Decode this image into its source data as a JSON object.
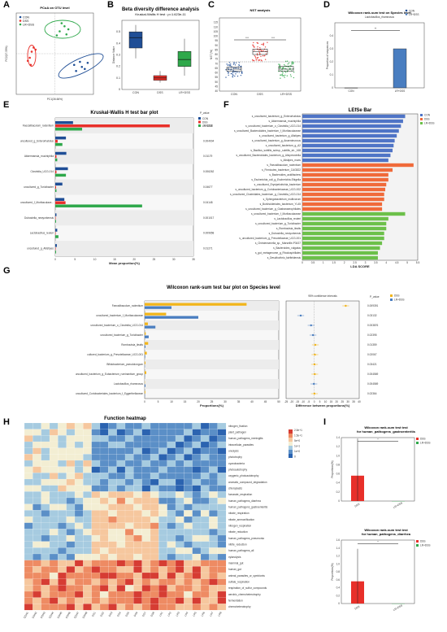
{
  "colors": {
    "CON": "#1f4e96",
    "DSS": "#e8302a",
    "LR_DSS": "#2ea84a",
    "gold": "#f2b51a",
    "blue2": "#4a7ec0",
    "lefse_blue": "#4f74c6",
    "lefse_orange": "#f06a3a",
    "lefse_green": "#6cc04a"
  },
  "groups": [
    "CON",
    "DSS",
    "LR+DSS"
  ],
  "panel_letters": [
    "A",
    "B",
    "C",
    "D",
    "E",
    "F",
    "G",
    "H",
    "I"
  ],
  "chart_data": [
    {
      "id": "A",
      "type": "scatter",
      "title": "PCoA on OTU level",
      "xlabel": "PC1(36.66%)",
      "ylabel": "PC2(17.33%)",
      "series": [
        {
          "name": "CON",
          "points": [
            [
              0.22,
              -0.17
            ],
            [
              0.28,
              -0.13
            ],
            [
              0.34,
              -0.09
            ],
            [
              0.26,
              -0.08
            ],
            [
              0.31,
              -0.15
            ],
            [
              0.2,
              -0.11
            ]
          ]
        },
        {
          "name": "DSS",
          "points": [
            [
              -0.26,
              -0.04
            ],
            [
              -0.24,
              0.02
            ],
            [
              -0.28,
              -0.07
            ],
            [
              -0.22,
              0.06
            ],
            [
              -0.25,
              -0.11
            ],
            [
              -0.2,
              0.04
            ]
          ]
        },
        {
          "name": "LR+DSS",
          "points": [
            [
              0.05,
              0.22
            ],
            [
              0.1,
              0.27
            ],
            [
              0.02,
              0.18
            ],
            [
              0.12,
              0.19
            ],
            [
              0.07,
              0.3
            ],
            [
              0.14,
              0.24
            ]
          ]
        }
      ]
    },
    {
      "id": "B",
      "type": "box",
      "title": "Beta diversity difference analysis",
      "subtitle": "Kruskal-Wallis H test : p=1.623e-11",
      "ylabel": "Distance Value",
      "categories": [
        "CON",
        "DSS",
        "LR+DSS"
      ],
      "boxes": [
        [
          0.27,
          0.36,
          0.45,
          0.5,
          0.56
        ],
        [
          0.06,
          0.08,
          0.1,
          0.12,
          0.16
        ],
        [
          0.12,
          0.2,
          0.26,
          0.33,
          0.44
        ]
      ]
    },
    {
      "id": "C",
      "type": "box",
      "title": "NST analysis",
      "ylabel": "NST (%)",
      "categories": [
        "CON",
        "DSS",
        "LR+DSS"
      ],
      "yticks": [
        "40",
        "45",
        "50",
        "55",
        "60",
        "65",
        "70",
        "75",
        "80",
        "85",
        "90",
        "95",
        "100",
        "105",
        "110",
        "115"
      ],
      "boxes": [
        [
          58,
          62,
          64,
          66,
          69
        ],
        [
          76,
          80,
          83,
          86,
          91
        ],
        [
          57,
          62,
          64,
          67,
          70
        ]
      ],
      "sig": [
        "***",
        "***"
      ]
    },
    {
      "id": "D",
      "type": "bar",
      "title": "Wilcoxon rank-sum test on Species level",
      "subtitle": "Lactobacillus_rhamnosus",
      "ylabel": "Proportion of sequences",
      "categories": [
        "CON",
        "LR+DSS"
      ],
      "values": [
        0.0,
        0.3
      ],
      "sig": "**"
    },
    {
      "id": "E",
      "type": "bar",
      "title": "Kruskal-Wallis H test bar plot",
      "xlabel": "Mean proportion(%)",
      "pvalue_label": "P_value",
      "categories": [
        "Faecalibaculum_rodentium",
        "uncultured_g_Enterorhabdus",
        "Akkermansia_muciniphila",
        "Clostridia_UCG-014",
        "uncultured_g_Turicibacter",
        "uncultured_f_Muribaculace...",
        "Dubosiella_newyorkensis",
        "Lactobacillus_reuteri",
        "uncultured_g_Allistipes"
      ],
      "series": [
        {
          "name": "CON",
          "values": [
            4.5,
            2.7,
            2.8,
            3.2,
            1.8,
            2.3,
            0.3,
            0.5,
            0.4
          ]
        },
        {
          "name": "DSS",
          "values": [
            29.0,
            0.6,
            0.3,
            0.3,
            0.2,
            2.6,
            0.1,
            0.1,
            0.1
          ]
        },
        {
          "name": "LR+DSS",
          "values": [
            6.8,
            1.8,
            0.5,
            2.7,
            0.3,
            22.0,
            0.2,
            0.8,
            0.2
          ]
        }
      ],
      "pvalues": [
        "0.01218",
        "0.004004",
        "0.01179",
        "0.006262",
        "0.04677",
        "0.04148",
        "0.001017",
        "0.009658",
        "0.01271"
      ],
      "xlim": [
        0,
        35
      ]
    },
    {
      "id": "F",
      "type": "bar",
      "title": "LEfSe Bar",
      "xlabel": "LDA SCORE",
      "categories": [
        "s_uncultured_bacterium_g_Enterorhabdus",
        "s_Akkermansia_muciniphila",
        "s_uncultured_bacterium_o_Clostridia_UCG-014",
        "s_uncultured_Bacteroidales_bacterium_f_Muribaculaceae",
        "s_uncultured_bacterium_g_Alistipes",
        "s_uncultured_bacterium_g_Anaerotruncus",
        "s_uncultured_bacterium_g_A2",
        "s_Bacillus_subtilis_subsp._subtilis_str._168",
        "s_uncultured_Bacteroidales_bacterium_g_Alloprevotella",
        "s_Alistipes_muris",
        "s_Faecalibaculum_rodentium",
        "s_Firmicutes_bacterium_CAG822",
        "s_Bacteroides_acidifaciens",
        "s_Escherichia_coli_g_Escherichia-Shigella",
        "s_uncultured_Erysipelotrichia_bacterium",
        "s_uncultured_bacterium_g_Coriobacteriaceae_UCG-002",
        "s_uncultured_Clostridiales_bacterium_g_Clostridia_UCG-014",
        "s_Sphingobacterium_multivorum",
        "s_Burkholderiales_bacterium_YL45",
        "s_uncultured_bacterium_g_Gastranaerophilales",
        "s_uncultured_bacterium_f_Muribaculaceae",
        "s_Lactobacillus_reuteri",
        "s_uncultured_bacterium_g_Turicibacter",
        "s_Romboutsia_ilealis",
        "s_Dubosiella_newyorkensis",
        "s_uncultured_bacterium_g_Prevotellaceae_UCG-001",
        "s_Christensenella_sp._Marseille-P3437",
        "s_Bacteroides_vulgatus",
        "s_gut_metagenome_g_Rhodospirillales",
        "s_Desulfovibrio_fairfieldensis"
      ],
      "values": [
        4.9,
        4.8,
        4.7,
        4.6,
        4.5,
        4.4,
        4.35,
        4.3,
        4.2,
        4.1,
        5.3,
        4.3,
        4.1,
        4.1,
        4.0,
        3.95,
        3.9,
        3.9,
        3.8,
        3.8,
        4.9,
        4.1,
        4.0,
        4.0,
        3.9,
        3.9,
        3.8,
        3.7,
        3.6,
        3.6
      ],
      "groups_of": [
        "CON",
        "CON",
        "CON",
        "CON",
        "CON",
        "CON",
        "CON",
        "CON",
        "CON",
        "CON",
        "DSS",
        "DSS",
        "DSS",
        "DSS",
        "DSS",
        "DSS",
        "DSS",
        "DSS",
        "DSS",
        "DSS",
        "LR+DSS",
        "LR+DSS",
        "LR+DSS",
        "LR+DSS",
        "LR+DSS",
        "LR+DSS",
        "LR+DSS",
        "LR+DSS",
        "LR+DSS",
        "LR+DSS"
      ],
      "xticks": [
        "0",
        "0.5",
        "1",
        "1.5",
        "2",
        "2.5",
        "3",
        "3.5",
        "4",
        "4.5",
        "5",
        "5.5"
      ]
    },
    {
      "id": "G",
      "type": "bar",
      "title": "Wilcoxon rank-sum test bar plot on Species level",
      "xlabel": "Proportions(%)",
      "xlabel2": "Difference between proportions(%)",
      "ci_label": "95% confidence intervals",
      "pvalue_label": "P_value",
      "categories": [
        "Faecalibaculum_rodentium",
        "uncultured_bacterium_f_Muribaculaceae",
        "uncultured_bacterium_o_Clostridia_UCG-014",
        "uncultured_bacterium_g_Turicibacter",
        "Romboutsia_ilealis",
        "cultured_bacterium_g_Prevotellaceae_UCG-001",
        "Bifidobacterium_pseudolongum",
        "uncultured_bacterium_g_Eubacterium_ruminantium_group",
        "Lactobacillus_rhamnosus",
        "uncultured_Coriobacteriales_bacterium_f_Eggerthellaceae"
      ],
      "series": [
        {
          "name": "DSS",
          "values": [
            38.0,
            8.0,
            1.2,
            0.4,
            1.3,
            0.8,
            0.3,
            0.6,
            0.0,
            0.25
          ]
        },
        {
          "name": "LR+DSS",
          "values": [
            10.0,
            20.0,
            4.0,
            1.5,
            0.3,
            0.2,
            0.05,
            0.1,
            0.3,
            0.05
          ]
        }
      ],
      "diff": [
        28.0,
        -12.0,
        -2.8,
        -1.1,
        1.0,
        0.6,
        0.25,
        0.5,
        -0.3,
        0.2
      ],
      "pvalues": [
        "0.009391",
        "0.03132",
        "0.003876",
        "0.02395",
        "0.01359",
        "0.02067",
        "0.03421",
        "0.004569",
        "0.004569",
        "0.02364"
      ],
      "xticks": [
        "0",
        "5",
        "10",
        "15",
        "20",
        "25",
        "30",
        "35",
        "40",
        "45",
        "50"
      ],
      "xticks2": [
        "-25",
        "-20",
        "-15",
        "-10",
        "-5",
        "0",
        "5",
        "10",
        "15",
        "20",
        "25",
        "30",
        "35",
        "40"
      ]
    },
    {
      "id": "H",
      "type": "heatmap",
      "title": "Function heatmap",
      "rows": [
        "nitrogen_fixation",
        "plant_pathogen",
        "human_pathogens_meningitis",
        "intracellular_parasites",
        "ureolysis",
        "phototrophy",
        "cyanobacteria",
        "photoautotrophy",
        "oxygenic_photoautotrophy",
        "aromatic_compound_degradation",
        "chloroplasts",
        "fumarate_respiration",
        "human_pathogens_diarrhea",
        "human_pathogens_gastroenteritis",
        "nitrate_respiration",
        "nitrate_ammonification",
        "nitrogen_respiration",
        "nitrate_reduction",
        "human_pathogens_pneumonia",
        "nitrite_reduction",
        "human_pathogens_all",
        "xylanolysis",
        "mammal_gut",
        "human_gut",
        "animal_parasites_or_symbionts",
        "sulfate_respiration",
        "respiration_of_sulfur_compounds",
        "aerobic_chemoheterotrophy",
        "fermentation",
        "chemoheterotrophy"
      ],
      "cols": [
        "CON1",
        "CON2",
        "CON3",
        "CON4",
        "CON5",
        "CON6",
        "CON7",
        "CON8",
        "DS1",
        "DS2",
        "DS3",
        "DS4",
        "DS5",
        "DS6",
        "DS7",
        "DS8",
        "LR1",
        "LR2",
        "LR3",
        "LR4",
        "LR5",
        "LR6",
        "LR7",
        "LR8"
      ],
      "scale_labels": [
        "2.5e+1",
        "1.5e+1",
        "5e+0",
        "1e+1",
        "1e+0",
        "0"
      ]
    },
    {
      "id": "I1",
      "type": "bar",
      "title": "Wilcoxon rank-sum test test",
      "subtitle": "for human_pathogens_gastroenteritis",
      "ylabel": "Proportions(%)",
      "categories": [
        "DSS",
        "LR+DSS"
      ],
      "values": [
        0.56,
        0.0
      ],
      "err": [
        0.82,
        0.0
      ],
      "yticks": [
        "0",
        "0.2",
        "0.4",
        "0.6",
        "0.8",
        "1.0",
        "1.2",
        "1.4"
      ],
      "sig": "*"
    },
    {
      "id": "I2",
      "type": "bar",
      "title": "Wilcoxon rank-sum test test",
      "subtitle": "for human_pathogens_diarrhea",
      "ylabel": "Proportions(%)",
      "categories": [
        "DSS",
        "LR+DSS"
      ],
      "values": [
        0.56,
        0.0
      ],
      "err": [
        0.82,
        0.0
      ],
      "yticks": [
        "0",
        "0.2",
        "0.4",
        "0.6",
        "0.8",
        "1.0",
        "1.2",
        "1.4",
        "1.6"
      ],
      "sig": "*"
    }
  ]
}
